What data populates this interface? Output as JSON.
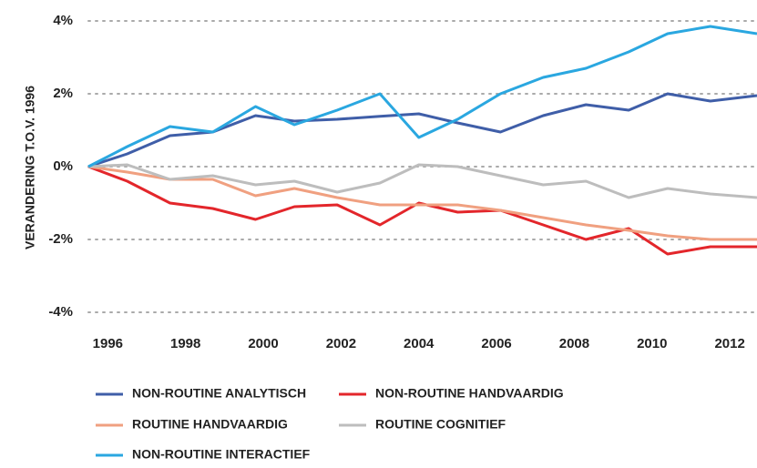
{
  "chart_data": {
    "type": "line",
    "ylabel": "VERANDERING T.O.V. 1996",
    "x": [
      1995.5,
      1996.5,
      1997.6,
      1998.7,
      1999.8,
      2000.8,
      2001.9,
      2003.0,
      2004.0,
      2005.0,
      2006.1,
      2007.2,
      2008.3,
      2009.4,
      2010.4,
      2011.5,
      2012.7
    ],
    "series": [
      {
        "name": "NON-ROUTINE ANALYTISCH",
        "color": "#3f5ea8",
        "values": [
          0,
          0.35,
          0.85,
          0.95,
          1.4,
          1.25,
          1.3,
          1.38,
          1.45,
          1.2,
          0.95,
          1.4,
          1.7,
          1.55,
          2.0,
          1.8,
          1.95
        ]
      },
      {
        "name": "NON-ROUTINE HANDVAARDIG",
        "color": "#e3262b",
        "values": [
          0,
          -0.4,
          -1.0,
          -1.15,
          -1.45,
          -1.1,
          -1.05,
          -1.6,
          -1.0,
          -1.25,
          -1.2,
          -1.6,
          -2.0,
          -1.7,
          -2.4,
          -2.2,
          -2.2
        ]
      },
      {
        "name": "ROUTINE HANDVAARDIG",
        "color": "#f0a080",
        "values": [
          0,
          -0.15,
          -0.35,
          -0.35,
          -0.8,
          -0.6,
          -0.85,
          -1.05,
          -1.05,
          -1.05,
          -1.2,
          -1.4,
          -1.6,
          -1.75,
          -1.9,
          -2.0,
          -2.0
        ]
      },
      {
        "name": "ROUTINE COGNITIEF",
        "color": "#bdbdbd",
        "values": [
          0,
          0.05,
          -0.35,
          -0.25,
          -0.5,
          -0.4,
          -0.7,
          -0.45,
          0.05,
          0.0,
          -0.25,
          -0.5,
          -0.4,
          -0.85,
          -0.6,
          -0.75,
          -0.85
        ]
      },
      {
        "name": "NON-ROUTINE INTERACTIEF",
        "color": "#2aa7e0",
        "values": [
          0,
          0.55,
          1.1,
          0.95,
          1.65,
          1.15,
          1.55,
          2.0,
          0.8,
          1.3,
          2.0,
          2.45,
          2.7,
          3.15,
          3.65,
          3.85,
          3.65
        ]
      }
    ],
    "xlim": [
      1995.5,
      2012.7
    ],
    "xticks": [
      1996,
      1998,
      2000,
      2002,
      2004,
      2006,
      2008,
      2010,
      2012
    ],
    "ylim": [
      -4,
      4
    ],
    "yticks": [
      {
        "value": 4,
        "label": "4%"
      },
      {
        "value": 2,
        "label": "2%"
      },
      {
        "value": 0,
        "label": "0%"
      },
      {
        "value": -2,
        "label": "-2%"
      },
      {
        "value": -4,
        "label": "-4%"
      }
    ],
    "grid": true
  }
}
